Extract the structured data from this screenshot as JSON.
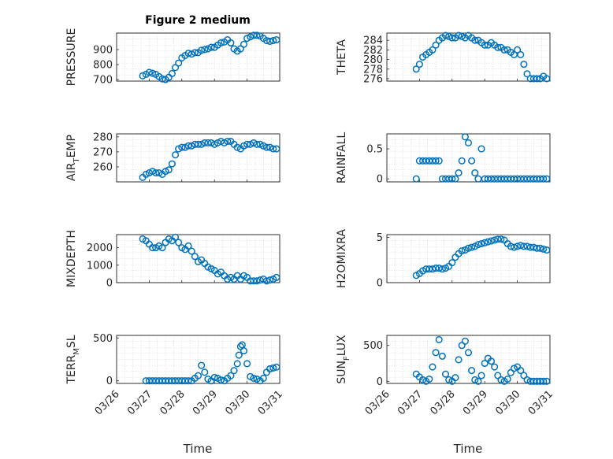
{
  "title": "Figure 2 medium",
  "xlabel": "Time",
  "date_ticks": [
    "03/26",
    "03/27",
    "03/28",
    "03/29",
    "03/30",
    "03/31"
  ],
  "marker_color": "#0072bd",
  "chart_data": [
    {
      "type": "scatter",
      "id": "pressure",
      "ylabel": "PRESSURE",
      "sub": "",
      "ylim": [
        690,
        1010
      ],
      "yticks": [
        700,
        800,
        900
      ],
      "x": [
        26.8,
        26.9,
        27.0,
        27.1,
        27.2,
        27.3,
        27.4,
        27.5,
        27.6,
        27.7,
        27.8,
        27.9,
        28.0,
        28.1,
        28.2,
        28.3,
        28.4,
        28.5,
        28.6,
        28.7,
        28.8,
        28.9,
        29.0,
        29.1,
        29.2,
        29.3,
        29.4,
        29.5,
        29.6,
        29.7,
        29.8,
        29.9,
        30.0,
        30.1,
        30.2,
        30.3,
        30.4,
        30.5,
        30.6,
        30.7,
        30.8,
        30.9
      ],
      "y": [
        725,
        735,
        748,
        742,
        735,
        720,
        705,
        700,
        715,
        740,
        780,
        810,
        845,
        860,
        875,
        870,
        880,
        880,
        895,
        900,
        905,
        915,
        915,
        930,
        945,
        950,
        965,
        945,
        905,
        890,
        905,
        935,
        975,
        985,
        995,
        995,
        990,
        975,
        960,
        955,
        960,
        965
      ]
    },
    {
      "type": "scatter",
      "id": "theta",
      "ylabel": "THETA",
      "sub": "",
      "ylim": [
        275.5,
        285.5
      ],
      "yticks": [
        276,
        278,
        280,
        282,
        284
      ],
      "x": [
        26.9,
        27.0,
        27.1,
        27.2,
        27.3,
        27.4,
        27.5,
        27.6,
        27.7,
        27.8,
        27.9,
        28.0,
        28.1,
        28.2,
        28.3,
        28.4,
        28.5,
        28.6,
        28.7,
        28.8,
        28.9,
        29.0,
        29.1,
        29.2,
        29.3,
        29.4,
        29.5,
        29.6,
        29.7,
        29.8,
        29.9,
        30.0,
        30.1,
        30.2,
        30.3,
        30.4,
        30.5,
        30.6,
        30.7,
        30.8,
        30.9
      ],
      "y": [
        278,
        279,
        280.5,
        281,
        281.5,
        282,
        283,
        284,
        284.5,
        285,
        284.8,
        284.5,
        284.5,
        285,
        284.8,
        284.5,
        285,
        284.5,
        284,
        284,
        283.5,
        283,
        283,
        283.5,
        283,
        282.5,
        282.5,
        282,
        282,
        281.5,
        281,
        282,
        281,
        279,
        277,
        276,
        276,
        276,
        276,
        276.5,
        276
      ]
    },
    {
      "type": "scatter",
      "id": "air_temp",
      "ylabel": "AIR",
      "sub": "T",
      "suffix": "EMP",
      "ylim": [
        250,
        282
      ],
      "yticks": [
        260,
        270,
        280
      ],
      "x": [
        26.8,
        26.9,
        27.0,
        27.1,
        27.2,
        27.3,
        27.4,
        27.5,
        27.6,
        27.7,
        27.8,
        27.9,
        28.0,
        28.1,
        28.2,
        28.3,
        28.4,
        28.5,
        28.6,
        28.7,
        28.8,
        28.9,
        29.0,
        29.1,
        29.2,
        29.3,
        29.4,
        29.5,
        29.6,
        29.7,
        29.8,
        29.9,
        30.0,
        30.1,
        30.2,
        30.3,
        30.4,
        30.5,
        30.6,
        30.7,
        30.8,
        30.9
      ],
      "y": [
        253,
        255,
        256,
        257,
        256,
        256,
        255,
        257,
        258,
        262,
        268,
        272,
        273,
        273,
        274,
        274,
        275,
        275,
        275,
        276,
        276,
        276,
        275,
        276,
        277,
        276,
        277,
        277,
        275,
        273,
        272,
        274,
        275,
        275,
        276,
        275,
        275,
        274,
        273,
        273,
        272,
        272
      ]
    },
    {
      "type": "scatter",
      "id": "rainfall",
      "ylabel": "RAINFALL",
      "sub": "",
      "ylim": [
        -0.05,
        0.75
      ],
      "yticks": [
        0,
        0.5
      ],
      "x": [
        26.9,
        27.0,
        27.1,
        27.2,
        27.3,
        27.4,
        27.5,
        27.6,
        27.7,
        27.8,
        27.9,
        28.0,
        28.1,
        28.2,
        28.3,
        28.4,
        28.5,
        28.6,
        28.7,
        28.8,
        28.9,
        29.0,
        29.1,
        29.2,
        29.3,
        29.4,
        29.5,
        29.6,
        29.7,
        29.8,
        29.9,
        30.0,
        30.1,
        30.2,
        30.3,
        30.4,
        30.5,
        30.6,
        30.7,
        30.8,
        30.9
      ],
      "y": [
        0,
        0.3,
        0.3,
        0.3,
        0.3,
        0.3,
        0.3,
        0.3,
        0,
        0,
        0,
        0,
        0,
        0.1,
        0.3,
        0.7,
        0.6,
        0.3,
        0.1,
        0,
        0.5,
        0,
        0,
        0,
        0,
        0,
        0,
        0,
        0,
        0,
        0,
        0,
        0,
        0,
        0,
        0,
        0,
        0,
        0,
        0,
        0
      ]
    },
    {
      "type": "scatter",
      "id": "mixdepth",
      "ylabel": "MIXDEPTH",
      "sub": "",
      "ylim": [
        0,
        2750
      ],
      "yticks": [
        0,
        1000,
        2000
      ],
      "x": [
        26.8,
        26.9,
        27.0,
        27.1,
        27.2,
        27.3,
        27.4,
        27.5,
        27.6,
        27.7,
        27.8,
        27.9,
        28.0,
        28.1,
        28.2,
        28.3,
        28.4,
        28.5,
        28.6,
        28.7,
        28.8,
        28.9,
        29.0,
        29.1,
        29.2,
        29.3,
        29.4,
        29.5,
        29.6,
        29.7,
        29.8,
        29.9,
        30.0,
        30.1,
        30.2,
        30.3,
        30.4,
        30.5,
        30.6,
        30.7,
        30.8,
        30.9
      ],
      "y": [
        2500,
        2400,
        2200,
        2000,
        2000,
        2100,
        2000,
        2300,
        2500,
        2400,
        2600,
        2300,
        2000,
        1900,
        2100,
        1800,
        1500,
        1200,
        1300,
        1100,
        900,
        800,
        700,
        500,
        600,
        400,
        200,
        300,
        200,
        400,
        200,
        400,
        300,
        100,
        100,
        100,
        150,
        200,
        100,
        150,
        200,
        300
      ]
    },
    {
      "type": "scatter",
      "id": "h2omixra",
      "ylabel": "H2OMIXRA",
      "sub": "",
      "ylim": [
        0,
        5.3
      ],
      "yticks": [
        0,
        5
      ],
      "x": [
        26.9,
        27.0,
        27.1,
        27.2,
        27.3,
        27.4,
        27.5,
        27.6,
        27.7,
        27.8,
        27.9,
        28.0,
        28.1,
        28.2,
        28.3,
        28.4,
        28.5,
        28.6,
        28.7,
        28.8,
        28.9,
        29.0,
        29.1,
        29.2,
        29.3,
        29.4,
        29.5,
        29.6,
        29.7,
        29.8,
        29.9,
        30.0,
        30.1,
        30.2,
        30.3,
        30.4,
        30.5,
        30.6,
        30.7,
        30.8,
        30.9
      ],
      "y": [
        0.8,
        1.0,
        1.3,
        1.5,
        1.5,
        1.5,
        1.6,
        1.6,
        1.5,
        1.6,
        1.8,
        2.2,
        2.8,
        3.2,
        3.5,
        3.6,
        3.8,
        3.9,
        4.0,
        4.2,
        4.3,
        4.4,
        4.5,
        4.6,
        4.7,
        4.8,
        4.8,
        4.7,
        4.3,
        4.0,
        3.9,
        4.0,
        4.1,
        4.0,
        4.0,
        3.9,
        3.9,
        3.8,
        3.8,
        3.7,
        3.6
      ]
    },
    {
      "type": "scatter",
      "id": "terr_msl",
      "ylabel": "TERR",
      "sub": "M",
      "suffix": "SL",
      "ylim": [
        -30,
        530
      ],
      "yticks": [
        0,
        500
      ],
      "x": [
        26.9,
        27.0,
        27.1,
        27.2,
        27.3,
        27.4,
        27.5,
        27.6,
        27.7,
        27.8,
        27.9,
        28.0,
        28.1,
        28.2,
        28.3,
        28.4,
        28.5,
        28.6,
        28.7,
        28.8,
        28.9,
        29.0,
        29.1,
        29.2,
        29.3,
        29.4,
        29.5,
        29.6,
        29.7,
        29.75,
        29.8,
        29.85,
        29.9,
        30.0,
        30.1,
        30.2,
        30.3,
        30.4,
        30.5,
        30.6,
        30.7,
        30.8,
        30.9
      ],
      "y": [
        0,
        0,
        0,
        0,
        0,
        0,
        0,
        0,
        0,
        0,
        0,
        0,
        0,
        0,
        0,
        30,
        60,
        180,
        100,
        20,
        0,
        40,
        30,
        10,
        0,
        30,
        60,
        120,
        200,
        300,
        400,
        420,
        350,
        200,
        50,
        30,
        20,
        0,
        30,
        100,
        140,
        150,
        160
      ]
    },
    {
      "type": "scatter",
      "id": "sun_flux",
      "ylabel": "SUN",
      "sub": "F",
      "suffix": "LUX",
      "ylim": [
        -30,
        640
      ],
      "yticks": [
        0,
        500
      ],
      "x": [
        26.9,
        27.0,
        27.1,
        27.2,
        27.3,
        27.4,
        27.5,
        27.6,
        27.7,
        27.8,
        27.9,
        28.0,
        28.1,
        28.2,
        28.3,
        28.4,
        28.5,
        28.6,
        28.7,
        28.8,
        28.9,
        29.0,
        29.1,
        29.2,
        29.3,
        29.4,
        29.5,
        29.6,
        29.7,
        29.8,
        29.9,
        30.0,
        30.1,
        30.2,
        30.3,
        30.4,
        30.5,
        30.6,
        30.7,
        30.8,
        30.9
      ],
      "y": [
        100,
        60,
        20,
        0,
        30,
        200,
        400,
        580,
        350,
        100,
        20,
        0,
        50,
        300,
        500,
        560,
        400,
        150,
        20,
        0,
        80,
        250,
        320,
        280,
        200,
        80,
        20,
        0,
        30,
        120,
        180,
        200,
        150,
        80,
        20,
        0,
        0,
        0,
        0,
        0,
        0
      ]
    }
  ]
}
